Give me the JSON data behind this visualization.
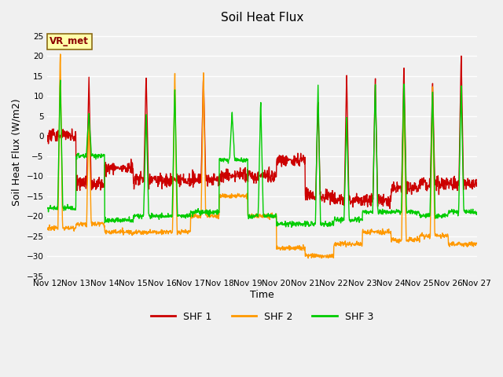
{
  "title": "Soil Heat Flux",
  "xlabel": "Time",
  "ylabel": "Soil Heat Flux (W/m2)",
  "ylim": [
    -35,
    27
  ],
  "yticks": [
    -35,
    -30,
    -25,
    -20,
    -15,
    -10,
    -5,
    0,
    5,
    10,
    15,
    20,
    25
  ],
  "x_labels": [
    "Nov 12",
    "Nov 13",
    "Nov 14",
    "Nov 15",
    "Nov 16",
    "Nov 17",
    "Nov 18",
    "Nov 19",
    "Nov 20",
    "Nov 21",
    "Nov 22",
    "Nov 23",
    "Nov 24",
    "Nov 25",
    "Nov 26",
    "Nov 27"
  ],
  "colors": {
    "SHF 1": "#cc0000",
    "SHF 2": "#ff9900",
    "SHF 3": "#00cc00"
  },
  "plot_bg": "#f0f0f0",
  "fig_bg": "#f0f0f0",
  "annotation_text": "VR_met",
  "line_width": 1.0,
  "legend_labels": [
    "SHF 1",
    "SHF 2",
    "SHF 3"
  ],
  "figsize": [
    6.4,
    4.8
  ],
  "dpi": 100
}
